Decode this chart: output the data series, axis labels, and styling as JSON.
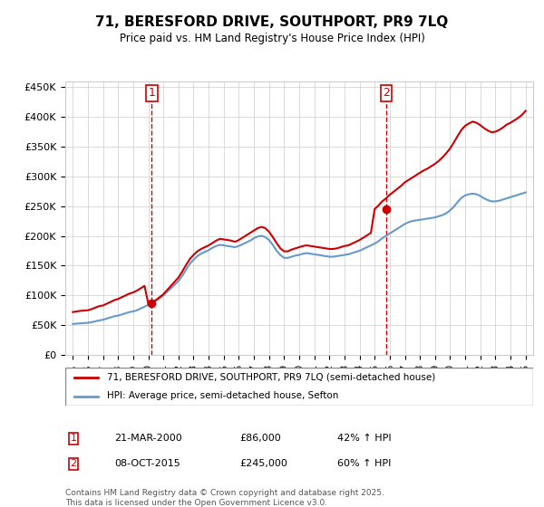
{
  "title": "71, BERESFORD DRIVE, SOUTHPORT, PR9 7LQ",
  "subtitle": "Price paid vs. HM Land Registry's House Price Index (HPI)",
  "red_label": "71, BERESFORD DRIVE, SOUTHPORT, PR9 7LQ (semi-detached house)",
  "blue_label": "HPI: Average price, semi-detached house, Sefton",
  "footnote": "Contains HM Land Registry data © Crown copyright and database right 2025.\nThis data is licensed under the Open Government Licence v3.0.",
  "annotation1_num": "1",
  "annotation1_date": "21-MAR-2000",
  "annotation1_price": "£86,000",
  "annotation1_hpi": "42% ↑ HPI",
  "annotation2_num": "2",
  "annotation2_date": "08-OCT-2015",
  "annotation2_price": "£245,000",
  "annotation2_hpi": "60% ↑ HPI",
  "red_color": "#cc0000",
  "blue_color": "#6699cc",
  "dashed_color": "#cc0000",
  "annotation_line_color": "#cc0000",
  "ylim": [
    0,
    460000
  ],
  "yticks": [
    0,
    50000,
    100000,
    150000,
    200000,
    250000,
    300000,
    350000,
    400000,
    450000
  ],
  "xmin": 1994.5,
  "xmax": 2025.5,
  "purchase1_x": 2000.22,
  "purchase1_y": 86000,
  "purchase2_x": 2015.77,
  "purchase2_y": 245000,
  "hpi_years": [
    1995,
    1995.25,
    1995.5,
    1995.75,
    1996,
    1996.25,
    1996.5,
    1996.75,
    1997,
    1997.25,
    1997.5,
    1997.75,
    1998,
    1998.25,
    1998.5,
    1998.75,
    1999,
    1999.25,
    1999.5,
    1999.75,
    2000,
    2000.25,
    2000.5,
    2000.75,
    2001,
    2001.25,
    2001.5,
    2001.75,
    2002,
    2002.25,
    2002.5,
    2002.75,
    2003,
    2003.25,
    2003.5,
    2003.75,
    2004,
    2004.25,
    2004.5,
    2004.75,
    2005,
    2005.25,
    2005.5,
    2005.75,
    2006,
    2006.25,
    2006.5,
    2006.75,
    2007,
    2007.25,
    2007.5,
    2007.75,
    2008,
    2008.25,
    2008.5,
    2008.75,
    2009,
    2009.25,
    2009.5,
    2009.75,
    2010,
    2010.25,
    2010.5,
    2010.75,
    2011,
    2011.25,
    2011.5,
    2011.75,
    2012,
    2012.25,
    2012.5,
    2012.75,
    2013,
    2013.25,
    2013.5,
    2013.75,
    2014,
    2014.25,
    2014.5,
    2014.75,
    2015,
    2015.25,
    2015.5,
    2015.75,
    2016,
    2016.25,
    2016.5,
    2016.75,
    2017,
    2017.25,
    2017.5,
    2017.75,
    2018,
    2018.25,
    2018.5,
    2018.75,
    2019,
    2019.25,
    2019.5,
    2019.75,
    2020,
    2020.25,
    2020.5,
    2020.75,
    2021,
    2021.25,
    2021.5,
    2021.75,
    2022,
    2022.25,
    2022.5,
    2022.75,
    2023,
    2023.25,
    2023.5,
    2023.75,
    2024,
    2024.25,
    2024.5,
    2024.75,
    2025
  ],
  "hpi_values": [
    52000,
    52500,
    53000,
    53500,
    54000,
    55000,
    56500,
    58000,
    59000,
    61000,
    63000,
    65000,
    66000,
    68000,
    70000,
    72000,
    73000,
    75000,
    78000,
    81000,
    84000,
    87000,
    91000,
    95000,
    100000,
    106000,
    112000,
    118000,
    124000,
    133000,
    143000,
    153000,
    160000,
    166000,
    170000,
    173000,
    176000,
    180000,
    183000,
    185000,
    184000,
    183000,
    182000,
    181000,
    183000,
    186000,
    189000,
    192000,
    196000,
    199000,
    200000,
    198000,
    193000,
    185000,
    175000,
    168000,
    163000,
    163000,
    165000,
    167000,
    168000,
    170000,
    171000,
    170000,
    169000,
    168000,
    167000,
    166000,
    165000,
    165000,
    166000,
    167000,
    168000,
    169000,
    171000,
    173000,
    175000,
    178000,
    181000,
    184000,
    187000,
    191000,
    196000,
    200000,
    204000,
    208000,
    212000,
    216000,
    220000,
    223000,
    225000,
    226000,
    227000,
    228000,
    229000,
    230000,
    231000,
    233000,
    235000,
    238000,
    243000,
    249000,
    257000,
    264000,
    268000,
    270000,
    271000,
    270000,
    267000,
    263000,
    260000,
    258000,
    258000,
    259000,
    261000,
    263000,
    265000,
    267000,
    269000,
    271000,
    273000
  ],
  "red_years": [
    1995,
    1995.25,
    1995.5,
    1995.75,
    1996,
    1996.25,
    1996.5,
    1996.75,
    1997,
    1997.25,
    1997.5,
    1997.75,
    1998,
    1998.25,
    1998.5,
    1998.75,
    1999,
    1999.25,
    1999.5,
    1999.75,
    2000,
    2000.25,
    2000.5,
    2000.75,
    2001,
    2001.25,
    2001.5,
    2001.75,
    2002,
    2002.25,
    2002.5,
    2002.75,
    2003,
    2003.25,
    2003.5,
    2003.75,
    2004,
    2004.25,
    2004.5,
    2004.75,
    2005,
    2005.25,
    2005.5,
    2005.75,
    2006,
    2006.25,
    2006.5,
    2006.75,
    2007,
    2007.25,
    2007.5,
    2007.75,
    2008,
    2008.25,
    2008.5,
    2008.75,
    2009,
    2009.25,
    2009.5,
    2009.75,
    2010,
    2010.25,
    2010.5,
    2010.75,
    2011,
    2011.25,
    2011.5,
    2011.75,
    2012,
    2012.25,
    2012.5,
    2012.75,
    2013,
    2013.25,
    2013.5,
    2013.75,
    2014,
    2014.25,
    2014.5,
    2014.75,
    2015,
    2015.25,
    2015.5,
    2015.75,
    2016,
    2016.25,
    2016.5,
    2016.75,
    2017,
    2017.25,
    2017.5,
    2017.75,
    2018,
    2018.25,
    2018.5,
    2018.75,
    2019,
    2019.25,
    2019.5,
    2019.75,
    2020,
    2020.25,
    2020.5,
    2020.75,
    2021,
    2021.25,
    2021.5,
    2021.75,
    2022,
    2022.25,
    2022.5,
    2022.75,
    2023,
    2023.25,
    2023.5,
    2023.75,
    2024,
    2024.25,
    2024.5,
    2024.75,
    2025
  ],
  "red_values": [
    72000,
    73000,
    74000,
    74500,
    75000,
    77000,
    79500,
    82000,
    83000,
    86000,
    89000,
    92000,
    94000,
    97000,
    100000,
    103000,
    105000,
    108000,
    112000,
    116000,
    86000,
    88000,
    92000,
    97000,
    102000,
    109000,
    116000,
    123000,
    130000,
    140000,
    151000,
    161000,
    168000,
    174000,
    178000,
    181000,
    184000,
    188000,
    192000,
    195000,
    194000,
    193000,
    192000,
    190000,
    193000,
    197000,
    201000,
    205000,
    209000,
    213000,
    215000,
    213000,
    207000,
    198000,
    188000,
    179000,
    174000,
    174000,
    177000,
    179000,
    181000,
    183000,
    184000,
    183000,
    182000,
    181000,
    180000,
    179000,
    178000,
    178000,
    179000,
    181000,
    183000,
    184000,
    187000,
    190000,
    193000,
    197000,
    201000,
    205000,
    245000,
    251000,
    258000,
    263000,
    269000,
    274000,
    279000,
    284000,
    290000,
    294000,
    298000,
    302000,
    306000,
    310000,
    313000,
    317000,
    321000,
    326000,
    332000,
    339000,
    347000,
    357000,
    368000,
    378000,
    385000,
    389000,
    392000,
    390000,
    386000,
    381000,
    377000,
    374000,
    375000,
    378000,
    382000,
    387000,
    390000,
    394000,
    398000,
    403000,
    410000
  ],
  "xtick_years": [
    1995,
    1996,
    1997,
    1998,
    1999,
    2000,
    2001,
    2002,
    2003,
    2004,
    2005,
    2006,
    2007,
    2008,
    2009,
    2010,
    2011,
    2012,
    2013,
    2014,
    2015,
    2016,
    2017,
    2018,
    2019,
    2020,
    2021,
    2022,
    2023,
    2024,
    2025
  ]
}
